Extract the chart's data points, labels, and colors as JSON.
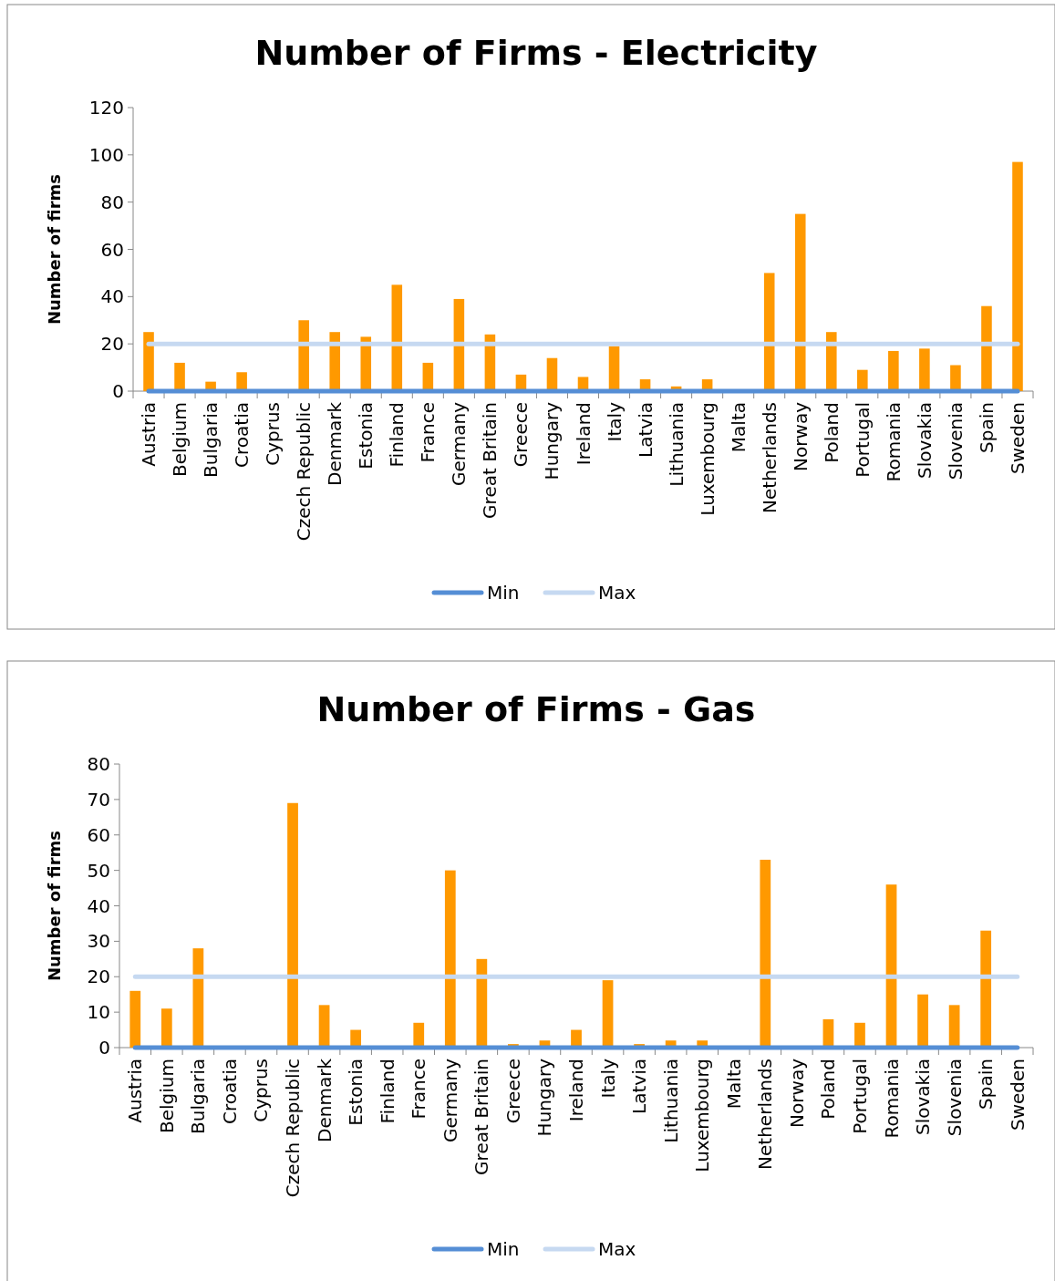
{
  "chart_data": [
    {
      "type": "bar",
      "title": "Number of Firms - Electricity",
      "ylabel": "Number of firms",
      "categories": [
        "Austria",
        "Belgium",
        "Bulgaria",
        "Croatia",
        "Cyprus",
        "Czech Republic",
        "Denmark",
        "Estonia",
        "Finland",
        "France",
        "Germany",
        "Great Britain",
        "Greece",
        "Hungary",
        "Ireland",
        "Italy",
        "Latvia",
        "Lithuania",
        "Luxembourg",
        "Malta",
        "Netherlands",
        "Norway",
        "Poland",
        "Portugal",
        "Romania",
        "Slovakia",
        "Slovenia",
        "Spain",
        "Sweden"
      ],
      "ylim": [
        0,
        120
      ],
      "yticks": [
        0,
        20,
        40,
        60,
        80,
        100,
        120
      ],
      "legend": "bottom",
      "grid": false,
      "series": [
        {
          "color": "#ff9900",
          "values": [
            25,
            12,
            4,
            8,
            0,
            30,
            25,
            23,
            45,
            12,
            39,
            24,
            7,
            14,
            6,
            19,
            5,
            2,
            5,
            0,
            50,
            75,
            25,
            9,
            17,
            18,
            11,
            36,
            97
          ]
        },
        {
          "type": "line",
          "name": "Min",
          "color": "#558ed5",
          "values": [
            0,
            0,
            0,
            0,
            0,
            0,
            0,
            0,
            0,
            0,
            0,
            0,
            0,
            0,
            0,
            0,
            0,
            0,
            0,
            0,
            0,
            0,
            0,
            0,
            0,
            0,
            0,
            0,
            0
          ]
        },
        {
          "type": "line",
          "name": "Max",
          "color": "#c6d9f1",
          "values": [
            20,
            20,
            20,
            20,
            20,
            20,
            20,
            20,
            20,
            20,
            20,
            20,
            20,
            20,
            20,
            20,
            20,
            20,
            20,
            20,
            20,
            20,
            20,
            20,
            20,
            20,
            20,
            20,
            20
          ]
        }
      ]
    },
    {
      "type": "bar",
      "title": "Number of Firms - Gas",
      "ylabel": "Number of firms",
      "categories": [
        "Austria",
        "Belgium",
        "Bulgaria",
        "Croatia",
        "Cyprus",
        "Czech Republic",
        "Denmark",
        "Estonia",
        "Finland",
        "France",
        "Germany",
        "Great Britain",
        "Greece",
        "Hungary",
        "Ireland",
        "Italy",
        "Latvia",
        "Lithuania",
        "Luxembourg",
        "Malta",
        "Netherlands",
        "Norway",
        "Poland",
        "Portugal",
        "Romania",
        "Slovakia",
        "Slovenia",
        "Spain",
        "Sweden"
      ],
      "ylim": [
        0,
        80
      ],
      "yticks": [
        0,
        10,
        20,
        30,
        40,
        50,
        60,
        70,
        80
      ],
      "legend": "bottom",
      "grid": false,
      "series": [
        {
          "color": "#ff9900",
          "values": [
            16,
            11,
            28,
            0,
            0,
            69,
            12,
            5,
            0,
            7,
            50,
            25,
            1,
            2,
            5,
            19,
            1,
            2,
            2,
            0,
            53,
            0,
            8,
            7,
            46,
            15,
            12,
            33,
            0
          ]
        },
        {
          "type": "line",
          "name": "Min",
          "color": "#558ed5",
          "values": [
            0,
            0,
            0,
            0,
            0,
            0,
            0,
            0,
            0,
            0,
            0,
            0,
            0,
            0,
            0,
            0,
            0,
            0,
            0,
            0,
            0,
            0,
            0,
            0,
            0,
            0,
            0,
            0,
            0
          ]
        },
        {
          "type": "line",
          "name": "Max",
          "color": "#c6d9f1",
          "values": [
            20,
            20,
            20,
            20,
            20,
            20,
            20,
            20,
            20,
            20,
            20,
            20,
            20,
            20,
            20,
            20,
            20,
            20,
            20,
            20,
            20,
            20,
            20,
            20,
            20,
            20,
            20,
            20,
            20
          ]
        }
      ]
    }
  ]
}
